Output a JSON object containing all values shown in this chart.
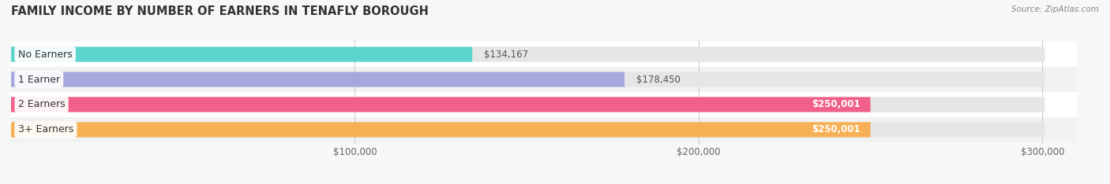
{
  "title": "FAMILY INCOME BY NUMBER OF EARNERS IN TENAFLY BOROUGH",
  "source": "Source: ZipAtlas.com",
  "categories": [
    "No Earners",
    "1 Earner",
    "2 Earners",
    "3+ Earners"
  ],
  "values": [
    134167,
    178450,
    250001,
    250001
  ],
  "bar_colors": [
    "#5dd5cf",
    "#a5a8de",
    "#f0608a",
    "#f7b055"
  ],
  "value_label_inside": [
    false,
    false,
    true,
    true
  ],
  "bar_labels": [
    "$134,167",
    "$178,450",
    "$250,001",
    "$250,001"
  ],
  "xlim": [
    0,
    310000
  ],
  "xticks": [
    100000,
    200000,
    300000
  ],
  "xtick_labels": [
    "$100,000",
    "$200,000",
    "$300,000"
  ],
  "background_color": "#f7f7f7",
  "bar_bg_color": "#e6e6e6",
  "title_fontsize": 10.5,
  "label_fontsize": 9,
  "value_fontsize": 8.5,
  "bar_height": 0.6,
  "fig_width": 14.06,
  "fig_height": 2.34,
  "row_bg_colors": [
    "#ffffff",
    "#f0f0f0",
    "#ffffff",
    "#f0f0f0"
  ]
}
